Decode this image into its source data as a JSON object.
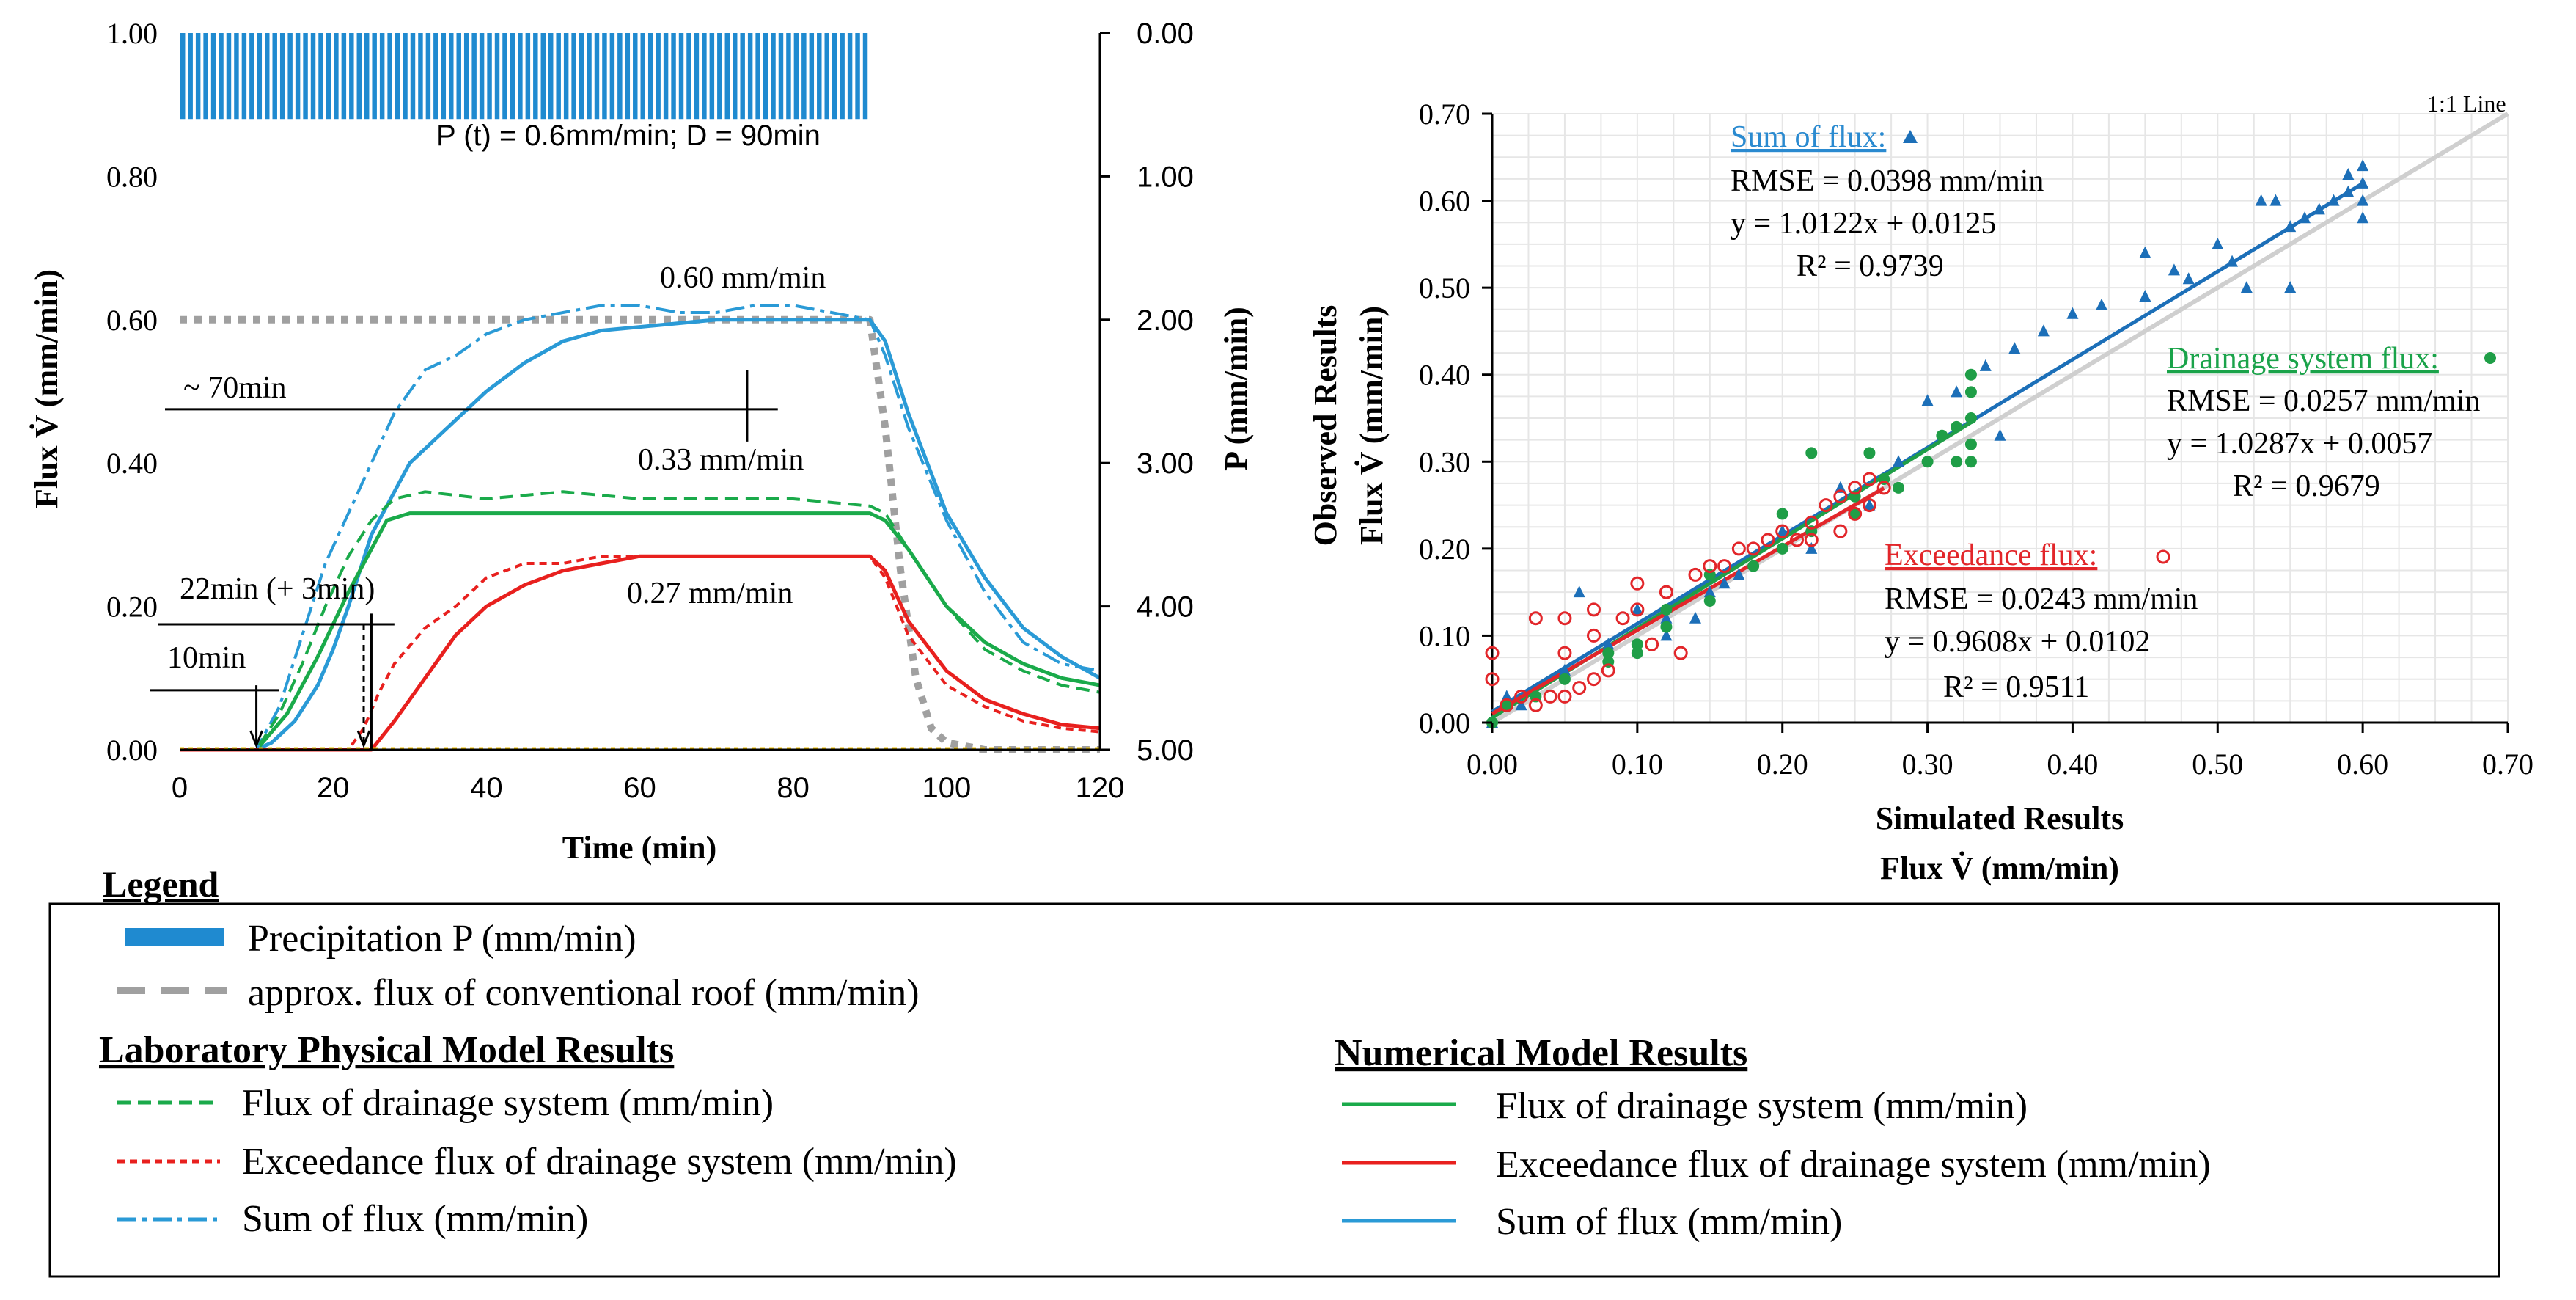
{
  "colors": {
    "precip": "#1f8ad0",
    "sum": "#2a9ad6",
    "drainage": "#1aaa4a",
    "exceedance": "#e8201e",
    "conventional": "#a0a0a0",
    "fitline": "#1c6fb8",
    "oneone": "#cfcfcf",
    "sum_scatter": "#1c6fb8",
    "drain_scatter": "#1f9e47",
    "exc_scatter": "#e2262a"
  },
  "chart_data": [
    {
      "type": "line",
      "id": "timeseries",
      "xlabel": "Time (min)",
      "ylabel": "Flux V̇ (mm/min)",
      "ylabel_right": "P (mm/min)",
      "xlim": [
        0,
        120
      ],
      "ylim": [
        0,
        1.0
      ],
      "ylim_right_inverted": [
        0,
        5
      ],
      "x_ticks": [
        "0",
        "20",
        "40",
        "60",
        "80",
        "100",
        "120"
      ],
      "y_ticks": [
        "0.00",
        "0.20",
        "0.40",
        "0.60",
        "0.80",
        "1.00"
      ],
      "y_ticks_right": [
        "0.00",
        "1.00",
        "2.00",
        "3.00",
        "4.00",
        "5.00"
      ],
      "precipitation": {
        "intensity": 0.6,
        "start": 0,
        "end": 90,
        "label": "P (t) = 0.6mm/min; D = 90min"
      },
      "annotations": {
        "plateau_sum": "0.60 mm/min",
        "plateau_drain": "0.33 mm/min",
        "plateau_exc": "0.27 mm/min",
        "delay_70": "~ 70min",
        "delay_22": "22min (+ 3min)",
        "delay_10": "10min"
      },
      "series": [
        {
          "name": "approx. flux of conventional roof (mm/min)",
          "style": "dotted-gray",
          "x": [
            0,
            90,
            92,
            94,
            96,
            98,
            100,
            105,
            120
          ],
          "values": [
            0.6,
            0.6,
            0.45,
            0.25,
            0.1,
            0.03,
            0.01,
            0.0,
            0.0
          ]
        },
        {
          "name": "Sum of flux (numerical)",
          "style": "solid-blue",
          "x": [
            0,
            10,
            12,
            15,
            18,
            20,
            22,
            25,
            28,
            30,
            35,
            40,
            45,
            50,
            55,
            60,
            70,
            80,
            90,
            92,
            95,
            100,
            105,
            110,
            115,
            120
          ],
          "values": [
            0,
            0.0,
            0.01,
            0.04,
            0.09,
            0.14,
            0.2,
            0.3,
            0.36,
            0.4,
            0.45,
            0.5,
            0.54,
            0.57,
            0.585,
            0.59,
            0.6,
            0.6,
            0.6,
            0.57,
            0.47,
            0.33,
            0.24,
            0.17,
            0.13,
            0.1
          ]
        },
        {
          "name": "Flux of drainage system (numerical)",
          "style": "solid-green",
          "x": [
            0,
            10,
            14,
            18,
            22,
            25,
            27,
            30,
            40,
            60,
            80,
            90,
            92,
            95,
            100,
            105,
            110,
            115,
            120
          ],
          "values": [
            0,
            0.0,
            0.05,
            0.13,
            0.22,
            0.28,
            0.32,
            0.33,
            0.33,
            0.33,
            0.33,
            0.33,
            0.32,
            0.28,
            0.2,
            0.15,
            0.12,
            0.1,
            0.09
          ]
        },
        {
          "name": "Exceedance flux of drainage system (numerical)",
          "style": "solid-red",
          "x": [
            0,
            25,
            28,
            32,
            36,
            40,
            45,
            50,
            55,
            60,
            70,
            80,
            90,
            92,
            95,
            100,
            105,
            110,
            115,
            120
          ],
          "values": [
            0,
            0.0,
            0.04,
            0.1,
            0.16,
            0.2,
            0.23,
            0.25,
            0.26,
            0.27,
            0.27,
            0.27,
            0.27,
            0.25,
            0.18,
            0.11,
            0.07,
            0.05,
            0.035,
            0.03
          ]
        },
        {
          "name": "Sum of flux (laboratory)",
          "style": "dashdot-blue",
          "x": [
            0,
            10,
            13,
            16,
            19,
            22,
            25,
            28,
            32,
            36,
            40,
            45,
            50,
            55,
            60,
            65,
            70,
            75,
            80,
            85,
            90,
            92,
            95,
            100,
            105,
            110,
            115,
            120
          ],
          "values": [
            0,
            0.0,
            0.06,
            0.16,
            0.26,
            0.33,
            0.4,
            0.47,
            0.53,
            0.55,
            0.58,
            0.6,
            0.61,
            0.62,
            0.62,
            0.61,
            0.61,
            0.62,
            0.62,
            0.61,
            0.6,
            0.55,
            0.45,
            0.32,
            0.22,
            0.15,
            0.12,
            0.11
          ]
        },
        {
          "name": "Flux of drainage system (laboratory)",
          "style": "dashed-green",
          "x": [
            0,
            10,
            13,
            16,
            19,
            22,
            25,
            28,
            32,
            40,
            50,
            60,
            70,
            80,
            90,
            92,
            95,
            100,
            105,
            110,
            115,
            120
          ],
          "values": [
            0,
            0.0,
            0.05,
            0.12,
            0.2,
            0.27,
            0.32,
            0.35,
            0.36,
            0.35,
            0.36,
            0.35,
            0.35,
            0.35,
            0.34,
            0.33,
            0.28,
            0.2,
            0.14,
            0.11,
            0.09,
            0.08
          ]
        },
        {
          "name": "Exceedance flux of drainage system (laboratory)",
          "style": "dashed-red",
          "x": [
            0,
            22,
            24,
            26,
            28,
            32,
            36,
            40,
            45,
            50,
            55,
            60,
            70,
            80,
            90,
            92,
            95,
            100,
            105,
            110,
            115,
            120
          ],
          "values": [
            0,
            0.0,
            0.03,
            0.08,
            0.12,
            0.17,
            0.2,
            0.24,
            0.26,
            0.26,
            0.27,
            0.27,
            0.27,
            0.27,
            0.27,
            0.24,
            0.16,
            0.09,
            0.06,
            0.04,
            0.03,
            0.025
          ]
        }
      ]
    },
    {
      "type": "scatter",
      "id": "correlation",
      "xlabel": "Simulated Results",
      "xlabel2": "Flux V̇ (mm/min)",
      "ylabel": "Observed Results",
      "ylabel2": "Flux V̇ (mm/min)",
      "xlim": [
        0,
        0.7
      ],
      "ylim": [
        0,
        0.7
      ],
      "x_ticks": [
        "0.00",
        "0.10",
        "0.20",
        "0.30",
        "0.40",
        "0.50",
        "0.60",
        "0.70"
      ],
      "y_ticks": [
        "0.00",
        "0.10",
        "0.20",
        "0.30",
        "0.40",
        "0.50",
        "0.60",
        "0.70"
      ],
      "oneone_label": "1:1 Line",
      "stats": {
        "sum": {
          "title": "Sum of flux:",
          "rmse": "RMSE = 0.0398 mm/min",
          "eq": "y = 1.0122x + 0.0125",
          "r2": "R² = 0.9739",
          "slope": 1.0122,
          "intercept": 0.0125
        },
        "drain": {
          "title": "Drainage system flux:",
          "rmse": "RMSE = 0.0257 mm/min",
          "eq": "y = 1.0287x + 0.0057",
          "r2": "R² = 0.9679",
          "slope": 1.0287,
          "intercept": 0.0057
        },
        "exc": {
          "title": "Exceedance flux:",
          "rmse": "RMSE = 0.0243 mm/min",
          "eq": "y = 0.9608x + 0.0102",
          "r2": "R² = 0.9511",
          "slope": 0.9608,
          "intercept": 0.0102
        }
      },
      "series": [
        {
          "name": "Sum of flux",
          "marker": "triangle",
          "points": [
            [
              0.0,
              0.0
            ],
            [
              0.01,
              0.03
            ],
            [
              0.02,
              0.02
            ],
            [
              0.05,
              0.06
            ],
            [
              0.08,
              0.09
            ],
            [
              0.1,
              0.13
            ],
            [
              0.12,
              0.1
            ],
            [
              0.14,
              0.12
            ],
            [
              0.15,
              0.15
            ],
            [
              0.17,
              0.17
            ],
            [
              0.2,
              0.22
            ],
            [
              0.22,
              0.2
            ],
            [
              0.24,
              0.27
            ],
            [
              0.26,
              0.25
            ],
            [
              0.28,
              0.3
            ],
            [
              0.3,
              0.37
            ],
            [
              0.32,
              0.38
            ],
            [
              0.34,
              0.41
            ],
            [
              0.36,
              0.43
            ],
            [
              0.38,
              0.45
            ],
            [
              0.4,
              0.47
            ],
            [
              0.42,
              0.48
            ],
            [
              0.45,
              0.49
            ],
            [
              0.47,
              0.52
            ],
            [
              0.48,
              0.51
            ],
            [
              0.5,
              0.55
            ],
            [
              0.51,
              0.53
            ],
            [
              0.52,
              0.5
            ],
            [
              0.53,
              0.6
            ],
            [
              0.54,
              0.6
            ],
            [
              0.55,
              0.57
            ],
            [
              0.56,
              0.58
            ],
            [
              0.57,
              0.59
            ],
            [
              0.58,
              0.6
            ],
            [
              0.59,
              0.61
            ],
            [
              0.59,
              0.63
            ],
            [
              0.6,
              0.62
            ],
            [
              0.6,
              0.64
            ],
            [
              0.6,
              0.58
            ],
            [
              0.6,
              0.6
            ],
            [
              0.45,
              0.54
            ],
            [
              0.55,
              0.5
            ],
            [
              0.35,
              0.33
            ],
            [
              0.12,
              0.12
            ],
            [
              0.06,
              0.15
            ],
            [
              0.16,
              0.16
            ]
          ]
        },
        {
          "name": "Drainage system flux",
          "marker": "circle",
          "points": [
            [
              0.0,
              0.0
            ],
            [
              0.01,
              0.02
            ],
            [
              0.03,
              0.03
            ],
            [
              0.05,
              0.05
            ],
            [
              0.08,
              0.07
            ],
            [
              0.1,
              0.09
            ],
            [
              0.12,
              0.11
            ],
            [
              0.15,
              0.14
            ],
            [
              0.18,
              0.18
            ],
            [
              0.2,
              0.2
            ],
            [
              0.22,
              0.22
            ],
            [
              0.25,
              0.26
            ],
            [
              0.27,
              0.28
            ],
            [
              0.28,
              0.27
            ],
            [
              0.3,
              0.3
            ],
            [
              0.31,
              0.33
            ],
            [
              0.32,
              0.34
            ],
            [
              0.33,
              0.32
            ],
            [
              0.33,
              0.35
            ],
            [
              0.33,
              0.38
            ],
            [
              0.33,
              0.4
            ],
            [
              0.33,
              0.3
            ],
            [
              0.32,
              0.3
            ],
            [
              0.22,
              0.31
            ],
            [
              0.26,
              0.31
            ],
            [
              0.2,
              0.24
            ],
            [
              0.15,
              0.17
            ],
            [
              0.1,
              0.08
            ],
            [
              0.08,
              0.08
            ],
            [
              0.25,
              0.24
            ],
            [
              0.12,
              0.13
            ]
          ]
        },
        {
          "name": "Exceedance flux",
          "marker": "open-circle",
          "points": [
            [
              0.0,
              0.05
            ],
            [
              0.0,
              0.08
            ],
            [
              0.01,
              0.02
            ],
            [
              0.02,
              0.03
            ],
            [
              0.03,
              0.02
            ],
            [
              0.04,
              0.03
            ],
            [
              0.05,
              0.03
            ],
            [
              0.06,
              0.04
            ],
            [
              0.07,
              0.05
            ],
            [
              0.08,
              0.06
            ],
            [
              0.03,
              0.12
            ],
            [
              0.05,
              0.12
            ],
            [
              0.07,
              0.13
            ],
            [
              0.1,
              0.16
            ],
            [
              0.12,
              0.15
            ],
            [
              0.15,
              0.18
            ],
            [
              0.17,
              0.2
            ],
            [
              0.19,
              0.21
            ],
            [
              0.2,
              0.22
            ],
            [
              0.22,
              0.23
            ],
            [
              0.23,
              0.25
            ],
            [
              0.24,
              0.26
            ],
            [
              0.25,
              0.27
            ],
            [
              0.26,
              0.28
            ],
            [
              0.27,
              0.27
            ],
            [
              0.26,
              0.25
            ],
            [
              0.25,
              0.24
            ],
            [
              0.24,
              0.22
            ],
            [
              0.22,
              0.21
            ],
            [
              0.21,
              0.21
            ],
            [
              0.18,
              0.2
            ],
            [
              0.16,
              0.18
            ],
            [
              0.14,
              0.17
            ],
            [
              0.12,
              0.15
            ],
            [
              0.1,
              0.13
            ],
            [
              0.09,
              0.12
            ],
            [
              0.07,
              0.1
            ],
            [
              0.05,
              0.08
            ],
            [
              0.13,
              0.08
            ],
            [
              0.11,
              0.09
            ]
          ]
        }
      ]
    }
  ],
  "legend": {
    "title": "Legend",
    "precip": "Precipitation P (mm/min)",
    "conventional": "approx. flux of conventional roof (mm/min)",
    "lab_head": "Laboratory Physical Model Results",
    "num_head": "Numerical Model Results",
    "lab_drain": "Flux of drainage system (mm/min)",
    "lab_exc": "Exceedance flux of drainage system (mm/min)",
    "lab_sum": "Sum of flux (mm/min)",
    "num_drain": "Flux of drainage system (mm/min)",
    "num_exc": "Exceedance flux of drainage system (mm/min)",
    "num_sum": "Sum of flux (mm/min)"
  }
}
